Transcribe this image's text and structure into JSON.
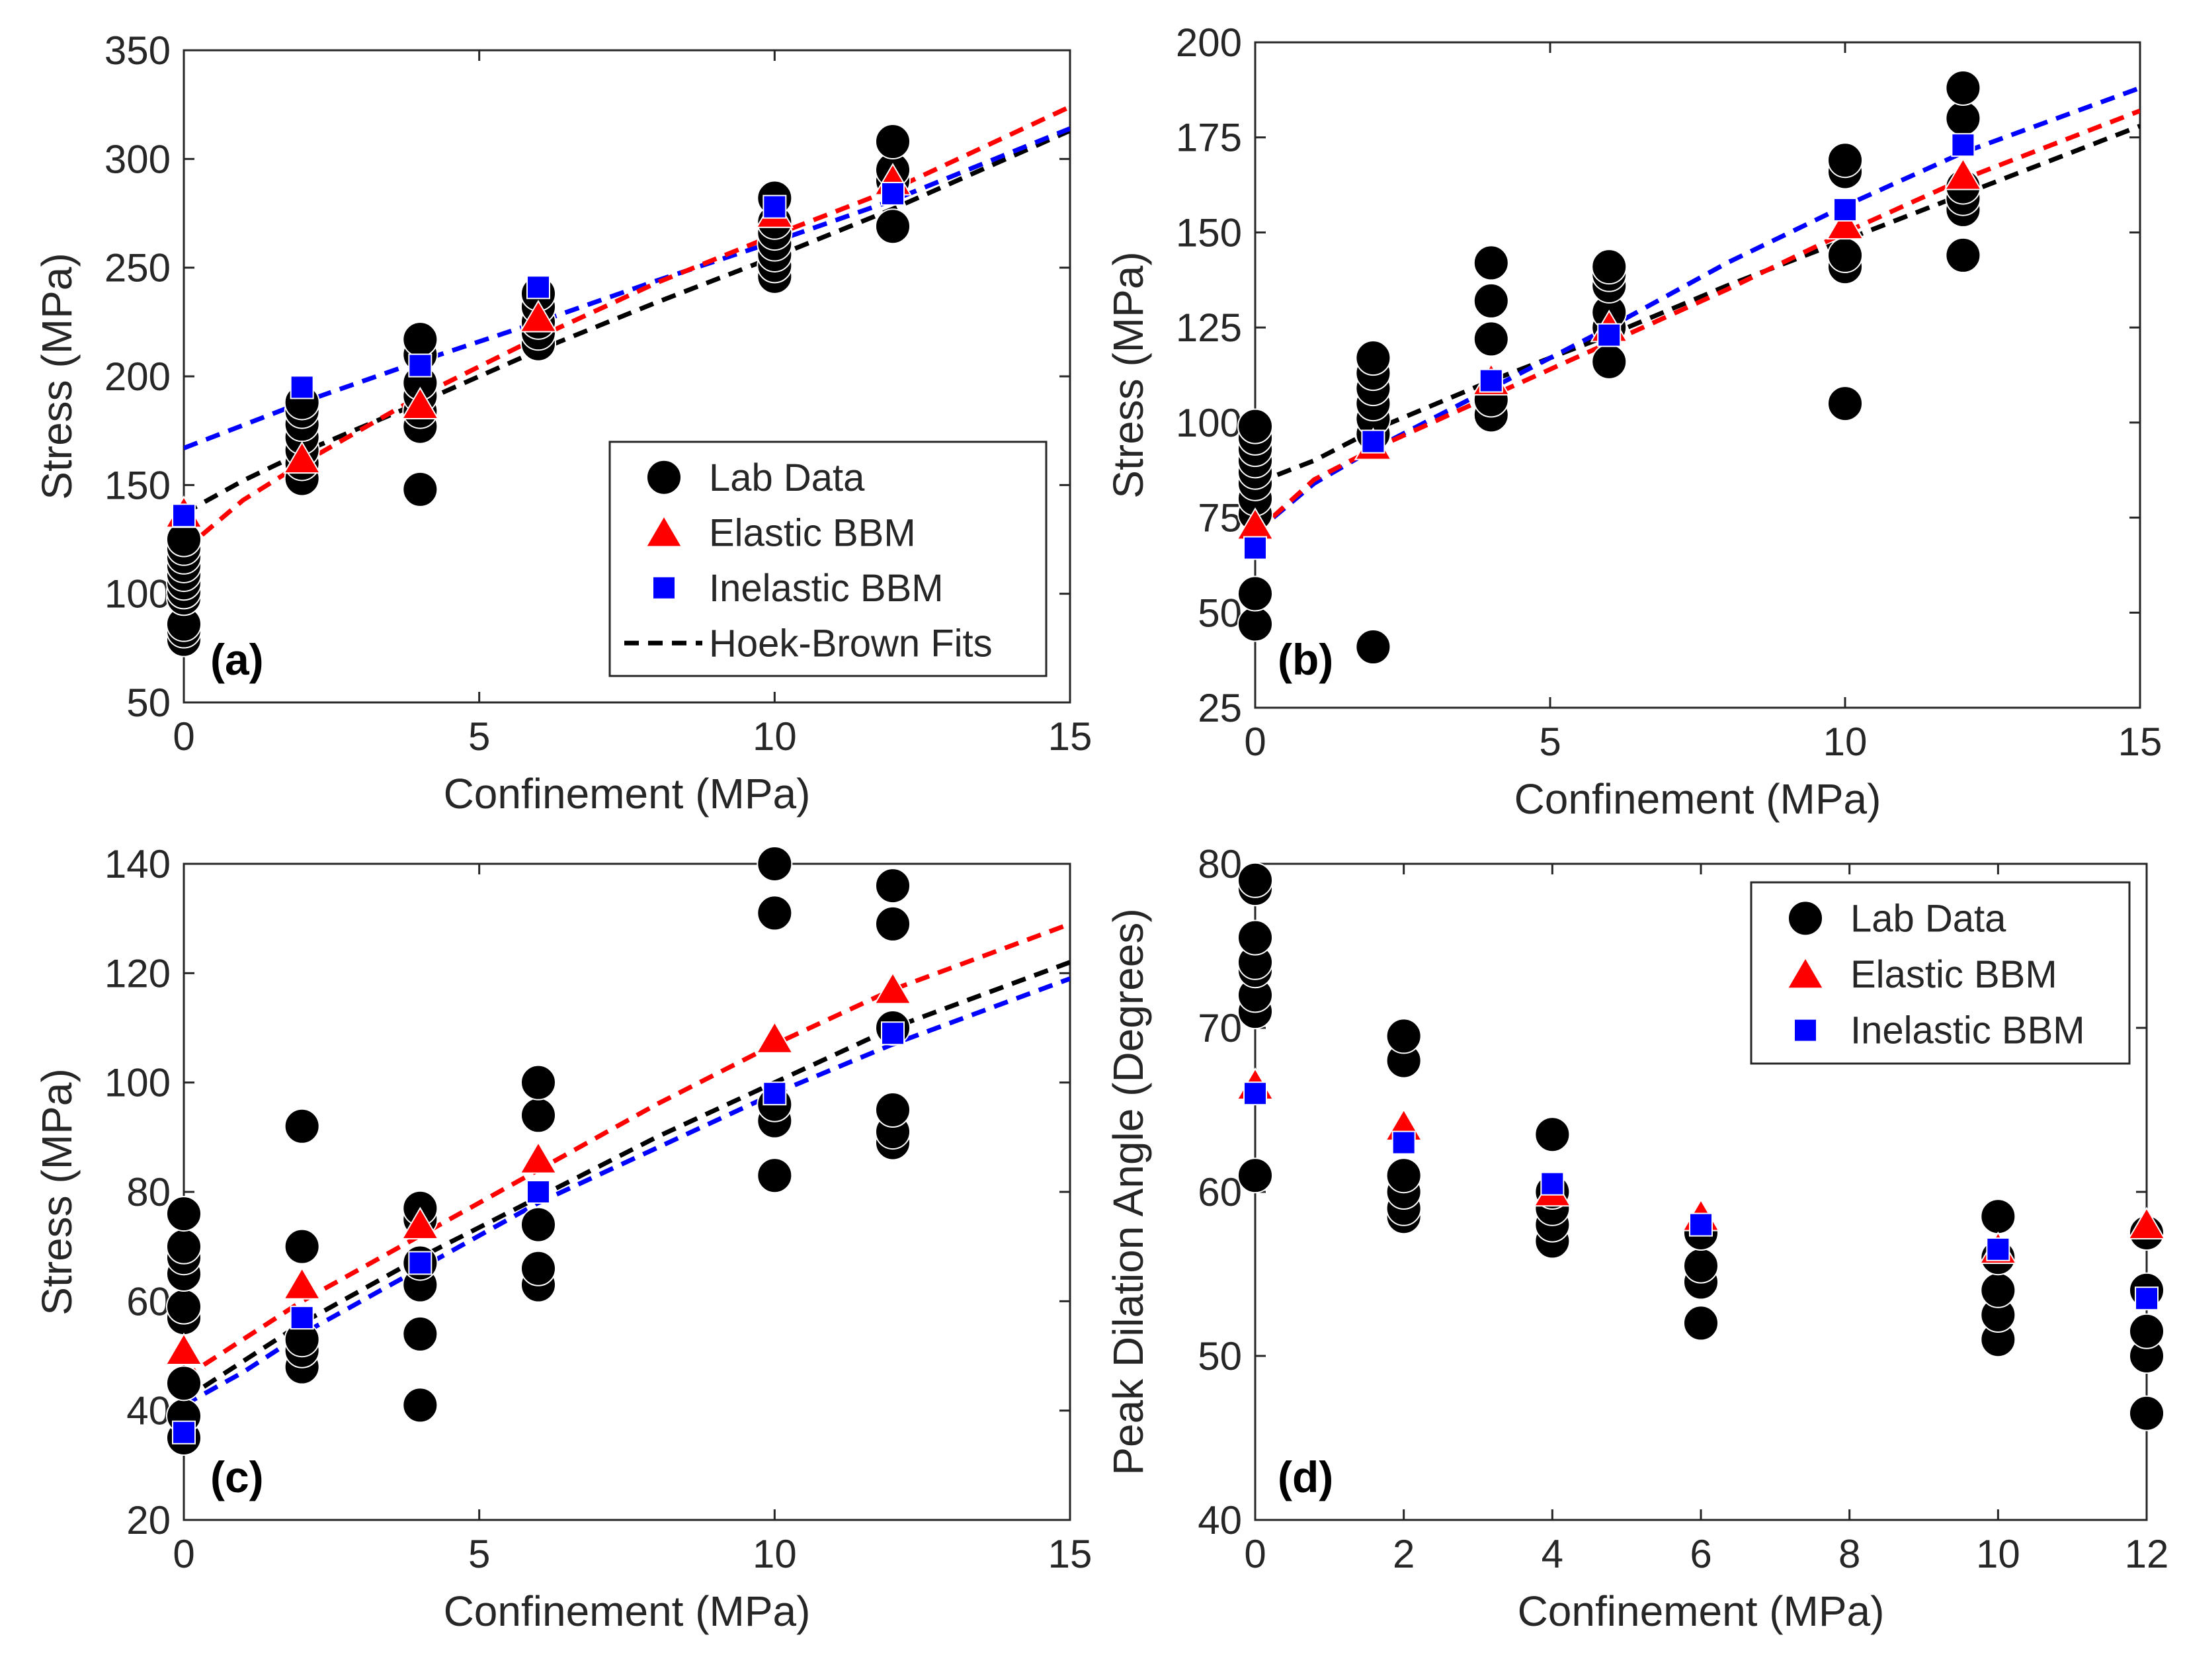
{
  "figure": {
    "x_label": "Confinement (MPa)",
    "colors": {
      "lab": "#000000",
      "elastic": "#ff0000",
      "inelastic": "#0000ff",
      "hoek": "#000000"
    },
    "legend_labels": {
      "lab": "Lab Data",
      "elastic": "Elastic BBM",
      "inelastic": "Inelastic BBM",
      "hoek": "Hoek-Brown Fits"
    }
  },
  "chart_data": [
    {
      "id": "a",
      "tag": "(a)",
      "type": "scatter",
      "xlabel": "Confinement (MPa)",
      "ylabel": "Stress (MPa)",
      "xlim": [
        0,
        15
      ],
      "ylim": [
        50,
        350
      ],
      "xticks": [
        0,
        5,
        10,
        15
      ],
      "yticks": [
        50,
        100,
        150,
        200,
        250,
        300,
        350
      ],
      "legend": [
        "lab",
        "elastic",
        "inelastic",
        "hoek"
      ],
      "lab": [
        [
          0,
          79
        ],
        [
          0,
          83
        ],
        [
          0,
          86
        ],
        [
          0,
          98
        ],
        [
          0,
          101
        ],
        [
          0,
          105
        ],
        [
          0,
          109
        ],
        [
          0,
          113
        ],
        [
          0,
          117
        ],
        [
          0,
          121
        ],
        [
          0,
          125
        ],
        [
          2,
          153
        ],
        [
          2,
          160
        ],
        [
          2,
          166
        ],
        [
          2,
          172
        ],
        [
          2,
          178
        ],
        [
          2,
          184
        ],
        [
          2,
          188
        ],
        [
          4,
          148
        ],
        [
          4,
          177
        ],
        [
          4,
          184
        ],
        [
          4,
          191
        ],
        [
          4,
          197
        ],
        [
          4,
          210
        ],
        [
          4,
          217
        ],
        [
          6,
          215
        ],
        [
          6,
          220
        ],
        [
          6,
          225
        ],
        [
          6,
          232
        ],
        [
          6,
          238
        ],
        [
          10,
          246
        ],
        [
          10,
          251
        ],
        [
          10,
          256
        ],
        [
          10,
          261
        ],
        [
          10,
          266
        ],
        [
          10,
          271
        ],
        [
          10,
          282
        ],
        [
          12,
          269
        ],
        [
          12,
          290
        ],
        [
          12,
          295
        ],
        [
          12,
          308
        ]
      ],
      "elastic_pts": [
        [
          0,
          137
        ],
        [
          2,
          162
        ],
        [
          4,
          187
        ],
        [
          6,
          227
        ],
        [
          10,
          275
        ],
        [
          12,
          290
        ]
      ],
      "inelastic_pts": [
        [
          0,
          136
        ],
        [
          2,
          195
        ],
        [
          4,
          205
        ],
        [
          6,
          241
        ],
        [
          10,
          278
        ],
        [
          12,
          284
        ]
      ],
      "elastic_fit": [
        [
          0,
          120
        ],
        [
          1,
          143
        ],
        [
          2,
          160
        ],
        [
          4,
          191
        ],
        [
          6,
          218
        ],
        [
          8,
          243
        ],
        [
          10,
          265
        ],
        [
          12,
          286
        ],
        [
          15,
          324
        ]
      ],
      "inelastic_fit": [
        [
          0,
          167
        ],
        [
          2,
          188
        ],
        [
          4,
          207
        ],
        [
          6,
          225
        ],
        [
          8,
          244
        ],
        [
          10,
          262
        ],
        [
          12,
          281
        ],
        [
          15,
          314
        ]
      ],
      "hoek_fit": [
        [
          0,
          137
        ],
        [
          1,
          152
        ],
        [
          2,
          165
        ],
        [
          4,
          188
        ],
        [
          6,
          212
        ],
        [
          8,
          234
        ],
        [
          10,
          255
        ],
        [
          12,
          277
        ],
        [
          15,
          313
        ]
      ]
    },
    {
      "id": "b",
      "tag": "(b)",
      "type": "scatter",
      "xlabel": "Confinement (MPa)",
      "ylabel": "Stress (MPa)",
      "xlim": [
        0,
        15
      ],
      "ylim": [
        25,
        200
      ],
      "xticks": [
        0,
        5,
        10,
        15
      ],
      "yticks": [
        25,
        50,
        75,
        100,
        125,
        150,
        175,
        200
      ],
      "legend": [],
      "lab": [
        [
          0,
          47
        ],
        [
          0,
          55
        ],
        [
          0,
          76
        ],
        [
          0,
          80
        ],
        [
          0,
          84
        ],
        [
          0,
          87
        ],
        [
          0,
          90
        ],
        [
          0,
          93
        ],
        [
          0,
          96
        ],
        [
          0,
          99
        ],
        [
          2,
          41
        ],
        [
          2,
          97
        ],
        [
          2,
          101
        ],
        [
          2,
          105
        ],
        [
          2,
          109
        ],
        [
          2,
          113
        ],
        [
          2,
          117
        ],
        [
          4,
          102
        ],
        [
          4,
          106
        ],
        [
          4,
          122
        ],
        [
          4,
          132
        ],
        [
          4,
          142
        ],
        [
          6,
          116
        ],
        [
          6,
          125
        ],
        [
          6,
          129
        ],
        [
          6,
          136
        ],
        [
          6,
          139
        ],
        [
          6,
          141
        ],
        [
          10,
          105
        ],
        [
          10,
          141
        ],
        [
          10,
          144
        ],
        [
          10,
          166
        ],
        [
          10,
          169
        ],
        [
          12,
          144
        ],
        [
          12,
          156
        ],
        [
          12,
          159
        ],
        [
          12,
          162
        ],
        [
          12,
          180
        ],
        [
          12,
          188
        ]
      ],
      "elastic_pts": [
        [
          0,
          73
        ],
        [
          2,
          94
        ],
        [
          4,
          111
        ],
        [
          6,
          125
        ],
        [
          10,
          152
        ],
        [
          12,
          165
        ]
      ],
      "inelastic_pts": [
        [
          0,
          67
        ],
        [
          2,
          95
        ],
        [
          4,
          111
        ],
        [
          6,
          123
        ],
        [
          10,
          156
        ],
        [
          12,
          173
        ]
      ],
      "elastic_fit": [
        [
          0,
          71
        ],
        [
          1,
          85
        ],
        [
          2,
          93
        ],
        [
          4,
          107
        ],
        [
          6,
          121
        ],
        [
          8,
          135
        ],
        [
          10,
          150
        ],
        [
          12,
          164
        ],
        [
          15,
          182
        ]
      ],
      "inelastic_fit": [
        [
          0,
          71
        ],
        [
          1,
          84
        ],
        [
          2,
          93
        ],
        [
          4,
          109
        ],
        [
          6,
          125
        ],
        [
          8,
          142
        ],
        [
          10,
          157
        ],
        [
          12,
          171
        ],
        [
          15,
          188
        ]
      ],
      "hoek_fit": [
        [
          0,
          84
        ],
        [
          1,
          90
        ],
        [
          2,
          98
        ],
        [
          4,
          111
        ],
        [
          6,
          123
        ],
        [
          8,
          136
        ],
        [
          10,
          148
        ],
        [
          12,
          160
        ],
        [
          15,
          178
        ]
      ]
    },
    {
      "id": "c",
      "tag": "(c)",
      "type": "scatter",
      "xlabel": "Confinement (MPa)",
      "ylabel": "Stress (MPa)",
      "xlim": [
        0,
        15
      ],
      "ylim": [
        20,
        140
      ],
      "xticks": [
        0,
        5,
        10,
        15
      ],
      "yticks": [
        20,
        40,
        60,
        80,
        100,
        120,
        140
      ],
      "legend": [],
      "lab": [
        [
          0,
          35
        ],
        [
          0,
          39
        ],
        [
          0,
          45
        ],
        [
          0,
          57
        ],
        [
          0,
          59
        ],
        [
          0,
          65
        ],
        [
          0,
          68
        ],
        [
          0,
          70
        ],
        [
          0,
          76
        ],
        [
          2,
          48
        ],
        [
          2,
          51
        ],
        [
          2,
          53
        ],
        [
          2,
          70
        ],
        [
          2,
          92
        ],
        [
          4,
          41
        ],
        [
          4,
          54
        ],
        [
          4,
          63
        ],
        [
          4,
          67
        ],
        [
          4,
          75
        ],
        [
          4,
          77
        ],
        [
          6,
          63
        ],
        [
          6,
          66
        ],
        [
          6,
          74
        ],
        [
          6,
          94
        ],
        [
          6,
          100
        ],
        [
          10,
          83
        ],
        [
          10,
          93
        ],
        [
          10,
          96
        ],
        [
          10,
          131
        ],
        [
          10,
          140
        ],
        [
          12,
          89
        ],
        [
          12,
          91
        ],
        [
          12,
          95
        ],
        [
          12,
          110
        ],
        [
          12,
          129
        ],
        [
          12,
          136
        ]
      ],
      "elastic_pts": [
        [
          0,
          51
        ],
        [
          2,
          63
        ],
        [
          4,
          74
        ],
        [
          6,
          86
        ],
        [
          10,
          108
        ],
        [
          12,
          117
        ]
      ],
      "inelastic_pts": [
        [
          0,
          36
        ],
        [
          2,
          57
        ],
        [
          4,
          67
        ],
        [
          6,
          80
        ],
        [
          10,
          98
        ],
        [
          12,
          109
        ]
      ],
      "elastic_fit": [
        [
          0,
          46
        ],
        [
          1,
          53
        ],
        [
          2,
          60
        ],
        [
          4,
          72
        ],
        [
          6,
          84
        ],
        [
          8,
          96
        ],
        [
          10,
          107
        ],
        [
          12,
          117
        ],
        [
          15,
          129
        ]
      ],
      "inelastic_fit": [
        [
          0,
          41
        ],
        [
          1,
          47
        ],
        [
          2,
          54
        ],
        [
          4,
          66
        ],
        [
          6,
          78
        ],
        [
          8,
          88
        ],
        [
          10,
          98
        ],
        [
          12,
          107
        ],
        [
          15,
          119
        ]
      ],
      "hoek_fit": [
        [
          0,
          42
        ],
        [
          1,
          49
        ],
        [
          2,
          56
        ],
        [
          4,
          68
        ],
        [
          6,
          79
        ],
        [
          8,
          90
        ],
        [
          10,
          100
        ],
        [
          12,
          110
        ],
        [
          15,
          122
        ]
      ]
    },
    {
      "id": "d",
      "tag": "(d)",
      "type": "scatter",
      "xlabel": "Confinement (MPa)",
      "ylabel": "Peak Dilation Angle (Degrees)",
      "xlim": [
        0,
        12
      ],
      "ylim": [
        40,
        80
      ],
      "xticks": [
        0,
        2,
        4,
        6,
        8,
        10,
        12
      ],
      "yticks": [
        40,
        50,
        60,
        70,
        80
      ],
      "legend": [
        "lab",
        "elastic",
        "inelastic"
      ],
      "lab": [
        [
          0,
          61
        ],
        [
          0,
          71
        ],
        [
          0,
          72
        ],
        [
          0,
          73.5
        ],
        [
          0,
          74
        ],
        [
          0,
          75.5
        ],
        [
          0,
          78.5
        ],
        [
          0,
          79
        ],
        [
          2,
          58.5
        ],
        [
          2,
          59
        ],
        [
          2,
          60
        ],
        [
          2,
          61
        ],
        [
          2,
          68
        ],
        [
          2,
          69.5
        ],
        [
          4,
          57
        ],
        [
          4,
          58
        ],
        [
          4,
          59
        ],
        [
          4,
          60
        ],
        [
          4,
          63.5
        ],
        [
          6,
          52
        ],
        [
          6,
          54.5
        ],
        [
          6,
          55.5
        ],
        [
          6,
          57.5
        ],
        [
          10,
          51
        ],
        [
          10,
          52.5
        ],
        [
          10,
          54
        ],
        [
          10,
          56
        ],
        [
          10,
          58.5
        ],
        [
          12,
          46.5
        ],
        [
          12,
          50
        ],
        [
          12,
          51.5
        ],
        [
          12,
          54
        ],
        [
          12,
          57.5
        ]
      ],
      "elastic_pts": [
        [
          0,
          66.5
        ],
        [
          2,
          64
        ],
        [
          4,
          60
        ],
        [
          6,
          58.5
        ],
        [
          10,
          56.5
        ],
        [
          12,
          58
        ]
      ],
      "inelastic_pts": [
        [
          0,
          66
        ],
        [
          2,
          63
        ],
        [
          4,
          60.5
        ],
        [
          6,
          58
        ],
        [
          10,
          56.5
        ],
        [
          12,
          53.5
        ]
      ],
      "elastic_fit": [],
      "inelastic_fit": [],
      "hoek_fit": []
    }
  ]
}
